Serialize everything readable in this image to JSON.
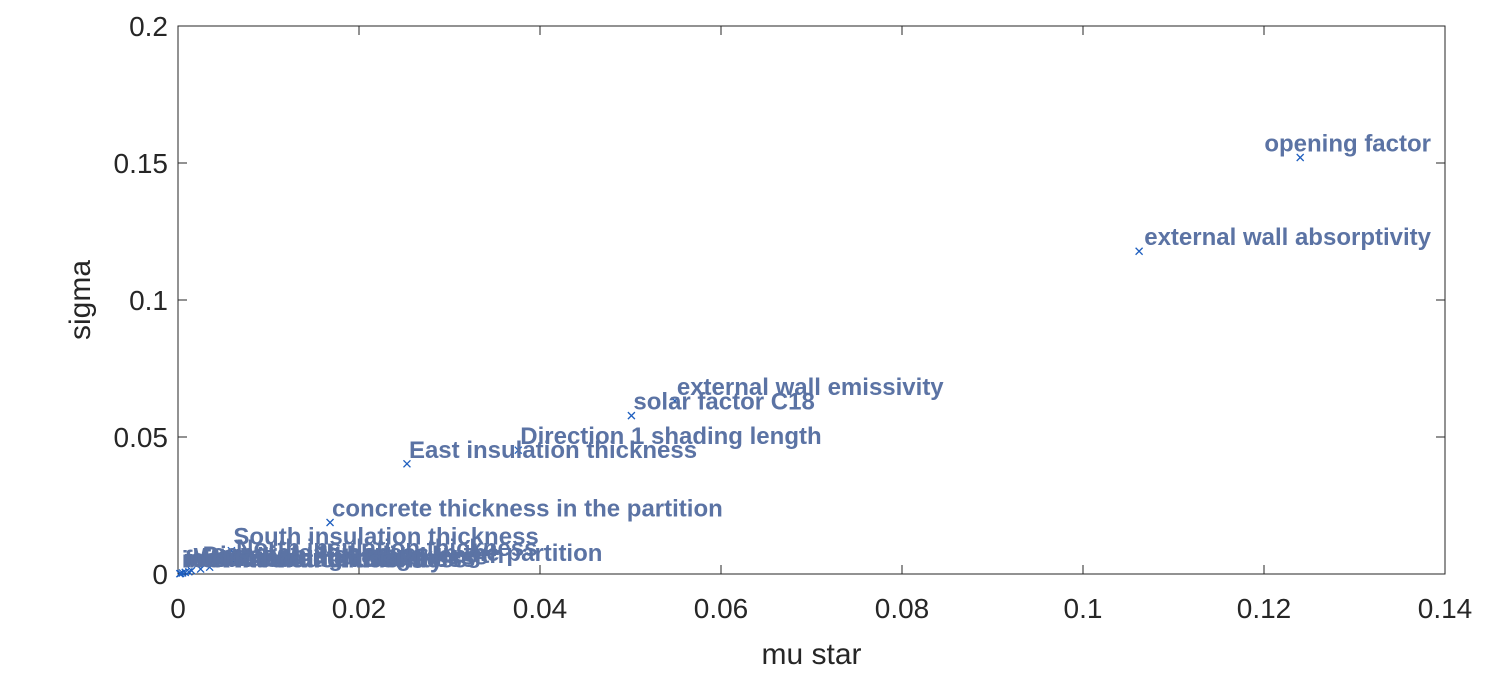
{
  "chart_data": {
    "type": "scatter",
    "title": "",
    "xlabel": "mu star",
    "ylabel": "sigma",
    "xlim": [
      0,
      0.14
    ],
    "ylim": [
      0,
      0.2
    ],
    "xticks": [
      0,
      0.02,
      0.04,
      0.06,
      0.08,
      0.1,
      0.12,
      0.14
    ],
    "xtick_labels": [
      "0",
      "0.02",
      "0.04",
      "0.06",
      "0.08",
      "0.1",
      "0.12",
      "0.14"
    ],
    "yticks": [
      0,
      0.05,
      0.1,
      0.15,
      0.2
    ],
    "ytick_labels": [
      "0",
      "0.05",
      "0.1",
      "0.15",
      "0.2"
    ],
    "grid": false,
    "marker": "x",
    "marker_color": "#1f5fbf",
    "label_color": "#5b73a4",
    "points": [
      {
        "label": "opening factor",
        "x": 0.124,
        "y": 0.152
      },
      {
        "label": "external wall absorptivity",
        "x": 0.1062,
        "y": 0.1178
      },
      {
        "label": "external wall emissivity",
        "x": 0.0549,
        "y": 0.0632
      },
      {
        "label": "solar factor C18",
        "x": 0.0501,
        "y": 0.0578
      },
      {
        "label": "Direction 1 shading length",
        "x": 0.0376,
        "y": 0.0452
      },
      {
        "label": "East insulation thickness",
        "x": 0.0253,
        "y": 0.0402
      },
      {
        "label": "concrete thickness in the partition",
        "x": 0.0168,
        "y": 0.0188
      },
      {
        "label": "South insulation thickness",
        "x": 0.0059,
        "y": 0.0085
      },
      {
        "label": "North insulation thickness",
        "x": 0.0062,
        "y": 0.0044
      },
      {
        "label": "concrete thickness in the partition",
        "x": 0.0035,
        "y": 0.0025
      },
      {
        "label": "Direction 2 shading length",
        "x": 0.0025,
        "y": 0.0018
      },
      {
        "label": "West insulation thickness",
        "x": 0.0015,
        "y": 0.0012
      },
      {
        "label": "solar factor glazing",
        "x": 0.0012,
        "y": 0.0008
      },
      {
        "label": "window frame ratio",
        "x": 0.0008,
        "y": 0.0006
      },
      {
        "label": "floor insulation thickness",
        "x": 0.0005,
        "y": 0.0004
      },
      {
        "label": "roof insulation thickness",
        "x": 0.0003,
        "y": 0.0002
      },
      {
        "label": "internal wall emissivity",
        "x": 0.0002,
        "y": 0.0001
      }
    ]
  }
}
